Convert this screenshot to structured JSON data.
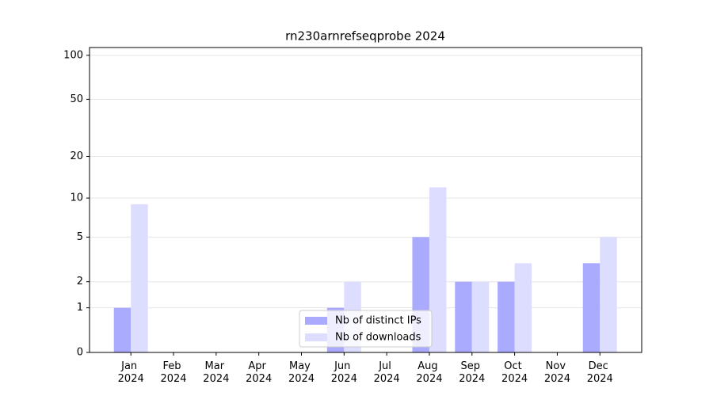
{
  "chart_data": {
    "type": "bar",
    "title": "rn230arnrefseqprobe 2024",
    "categories": [
      "Jan 2024",
      "Feb 2024",
      "Mar 2024",
      "Apr 2024",
      "May 2024",
      "Jun 2024",
      "Jul 2024",
      "Aug 2024",
      "Sep 2024",
      "Oct 2024",
      "Nov 2024",
      "Dec 2024"
    ],
    "series": [
      {
        "name": "Nb of distinct IPs",
        "color": "#aaaaff",
        "values": [
          1,
          0,
          0,
          0,
          0,
          1,
          0,
          5,
          2,
          2,
          0,
          3
        ]
      },
      {
        "name": "Nb of downloads",
        "color": "#ddddff",
        "values": [
          9,
          0,
          0,
          0,
          0,
          2,
          0,
          12,
          2,
          3,
          0,
          5
        ]
      }
    ],
    "y_scale": "log1p",
    "ylim": [
      0,
      113
    ],
    "yticks": [
      0,
      1,
      2,
      5,
      10,
      20,
      50,
      100
    ],
    "grid": true,
    "legend": "lower center"
  }
}
